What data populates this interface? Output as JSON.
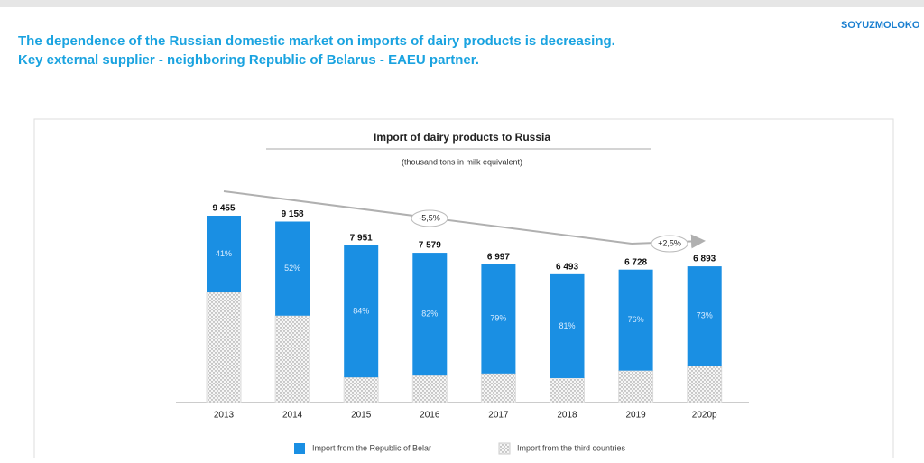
{
  "header": {
    "title": [
      "The dependence of the Russian domestic market on imports of dairy products is decreasing.",
      "Key external supplier - neighboring Republic of Belarus - EAEU partner."
    ],
    "logo": "SOYUZMOLOKO"
  },
  "chart_data": {
    "type": "bar",
    "stacked": true,
    "title": "Import of dairy products to Russia",
    "subtitle": "(thousand tons in milk equivalent)",
    "categories": [
      "2013",
      "2014",
      "2015",
      "2016",
      "2017",
      "2018",
      "2019",
      "2020p"
    ],
    "totals": {
      "values": [
        9455,
        9158,
        7951,
        7579,
        6997,
        6493,
        6728,
        6893
      ],
      "value_labels": [
        "9 455",
        "9 158",
        "7 951",
        "7 579",
        "6 997",
        "6 493",
        "6 728",
        "6 893"
      ]
    },
    "series": [
      {
        "name": "Import from the Republic of Belar",
        "color": "#1a8fe3",
        "values": [
          41,
          52,
          84,
          82,
          79,
          81,
          76,
          73
        ],
        "value_labels": [
          "41%",
          "52%",
          "84%",
          "82%",
          "79%",
          "81%",
          "76%",
          "73%"
        ]
      },
      {
        "name": "Import from the third countries",
        "color": "#f4f4f4",
        "values": [
          59,
          48,
          16,
          18,
          21,
          19,
          24,
          27
        ]
      }
    ],
    "annotations": [
      "-5,5%",
      "+2,5%"
    ]
  }
}
